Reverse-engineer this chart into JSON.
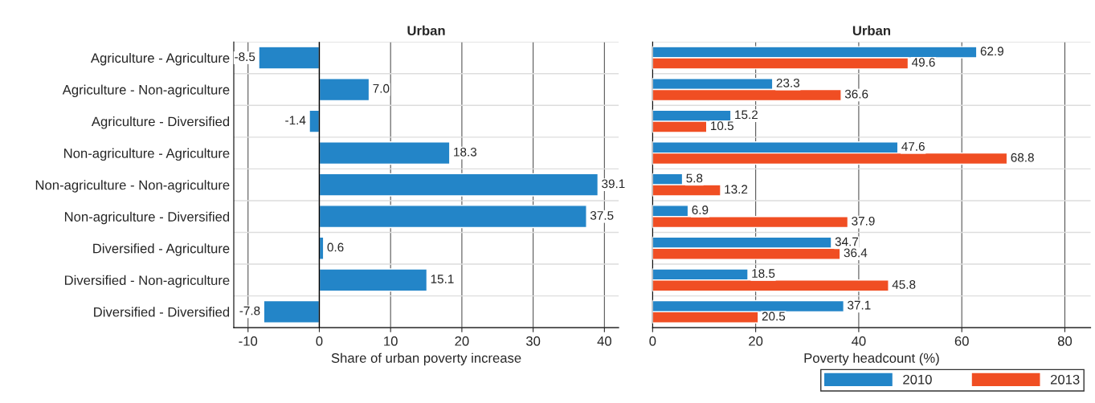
{
  "chart_data": [
    {
      "type": "bar",
      "orientation": "horizontal",
      "title": "Urban",
      "xlabel": "Share of urban poverty increase",
      "categories": [
        "Agriculture - Agriculture",
        "Agriculture - Non-agriculture",
        "Agriculture - Diversified",
        "Non-agriculture - Agriculture",
        "Non-agriculture - Non-agriculture",
        "Non-agriculture - Diversified",
        "Diversified - Agriculture",
        "Diversified - Non-agriculture",
        "Diversified - Diversified"
      ],
      "series": [
        {
          "color": "#2385c8",
          "values": [
            -8.5,
            7.0,
            -1.4,
            18.3,
            39.1,
            37.5,
            0.6,
            15.1,
            -7.8
          ],
          "value_labels": [
            "-8.5",
            "7.0",
            "-1.4",
            "18.3",
            "39.1",
            "37.5",
            "0.6",
            "15.1",
            "-7.8"
          ]
        }
      ],
      "xlim": [
        -12,
        42
      ],
      "xticks": [
        -10,
        0,
        10,
        20,
        30,
        40
      ],
      "grid": true,
      "legend": false,
      "ref_lines": [
        {
          "axis": "x",
          "value": 0,
          "color": "#000000"
        }
      ]
    },
    {
      "type": "bar",
      "orientation": "horizontal",
      "title": "Urban",
      "xlabel": "Poverty headcount (%)",
      "categories": [
        null,
        null,
        null,
        null,
        null,
        null,
        null,
        null,
        null
      ],
      "series": [
        {
          "name": "2010",
          "color": "#2385c8",
          "values": [
            62.9,
            23.3,
            15.2,
            47.6,
            5.8,
            6.9,
            34.7,
            18.5,
            37.1
          ]
        },
        {
          "name": "2013",
          "color": "#f04e23",
          "values": [
            49.6,
            36.6,
            10.5,
            68.8,
            13.2,
            37.9,
            36.4,
            45.8,
            20.5
          ]
        }
      ],
      "xlim": [
        0,
        85
      ],
      "xticks": [
        0,
        20,
        40,
        60,
        80
      ],
      "grid": true,
      "data_labels": true,
      "legend": "bottom right",
      "tick_labels": "x"
    }
  ]
}
